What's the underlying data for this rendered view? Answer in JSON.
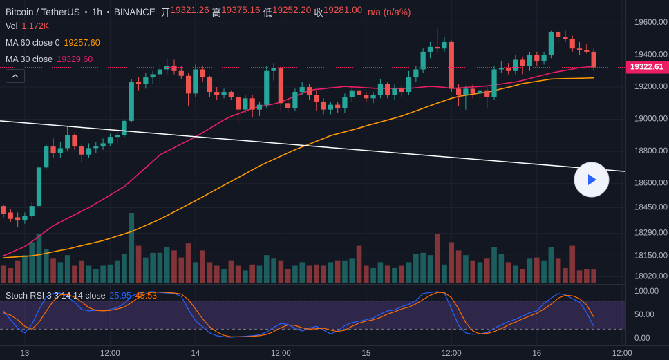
{
  "chart_data": {
    "type": "candlestick",
    "header": {
      "symbol": "Bitcoin / TetherUS",
      "interval": "1h",
      "exchange": "BINANCE",
      "ohlc": [
        {
          "name": "开",
          "value": 19321.26,
          "label": "19321.26"
        },
        {
          "name": "高",
          "value": 19375.16,
          "label": "19375.16"
        },
        {
          "name": "低",
          "value": 19252.2,
          "label": "19252.20"
        },
        {
          "name": "收",
          "value": 19281.0,
          "label": "19281.00"
        }
      ],
      "change": "n/a (n/a%)"
    },
    "up_color": "#26a69a",
    "down_color": "#ef5350",
    "xlim": [
      -0.49,
      87.46
    ],
    "xticks": [
      {
        "value": 3,
        "label": "13"
      },
      {
        "value": 15,
        "label": "12:00"
      },
      {
        "value": 27,
        "label": "14"
      },
      {
        "value": 39,
        "label": "12:00"
      },
      {
        "value": 51,
        "label": "15"
      },
      {
        "value": 63,
        "label": "12:00"
      },
      {
        "value": 75,
        "label": "16"
      },
      {
        "value": 87,
        "label": "12:00"
      }
    ],
    "ylim": [
      17979,
      19742
    ],
    "yticks": [
      {
        "value": 19600,
        "label": "19600.00"
      },
      {
        "value": 19400,
        "label": "19400.00"
      },
      {
        "value": 19200,
        "label": "19200.00"
      },
      {
        "value": 19000,
        "label": "19000.00"
      },
      {
        "value": 18800,
        "label": "18800.00"
      },
      {
        "value": 18600,
        "label": "18600.00"
      },
      {
        "value": 18450,
        "label": "18450.00"
      },
      {
        "value": 18290,
        "label": "18290.00"
      },
      {
        "value": 18150,
        "label": "18150.00"
      },
      {
        "value": 18020,
        "label": "18020.00"
      }
    ],
    "last_price": {
      "value": 19322.61,
      "label": "19322.61",
      "color": "#e91e63"
    },
    "candles": [
      [
        18460,
        18470,
        18390,
        18410
      ],
      [
        18420,
        18440,
        18360,
        18380
      ],
      [
        18390,
        18420,
        18330,
        18370
      ],
      [
        18370,
        18420,
        18350,
        18400
      ],
      [
        18400,
        18480,
        18380,
        18460
      ],
      [
        18460,
        18720,
        18450,
        18700
      ],
      [
        18700,
        18850,
        18690,
        18830
      ],
      [
        18830,
        18880,
        18760,
        18790
      ],
      [
        18790,
        18860,
        18760,
        18820
      ],
      [
        18820,
        18960,
        18800,
        18900
      ],
      [
        18900,
        18910,
        18810,
        18830
      ],
      [
        18830,
        18850,
        18730,
        18780
      ],
      [
        18780,
        18850,
        18760,
        18820
      ],
      [
        18820,
        18860,
        18790,
        18830
      ],
      [
        18830,
        18880,
        18810,
        18850
      ],
      [
        18850,
        18910,
        18830,
        18890
      ],
      [
        18890,
        18930,
        18850,
        18900
      ],
      [
        18900,
        19000,
        18890,
        18990
      ],
      [
        18990,
        19250,
        18980,
        19230
      ],
      [
        19230,
        19260,
        19180,
        19220
      ],
      [
        19220,
        19290,
        19190,
        19260
      ],
      [
        19260,
        19300,
        19220,
        19280
      ],
      [
        19280,
        19340,
        19220,
        19310
      ],
      [
        19310,
        19380,
        19280,
        19330
      ],
      [
        19330,
        19370,
        19280,
        19300
      ],
      [
        19300,
        19330,
        19250,
        19270
      ],
      [
        19270,
        19290,
        19080,
        19160
      ],
      [
        19160,
        19340,
        19140,
        19310
      ],
      [
        19310,
        19330,
        19230,
        19260
      ],
      [
        19260,
        19270,
        19140,
        19170
      ],
      [
        19170,
        19200,
        19120,
        19150
      ],
      [
        19150,
        19190,
        19130,
        19170
      ],
      [
        19170,
        19180,
        19120,
        19140
      ],
      [
        19140,
        19160,
        18970,
        19060
      ],
      [
        19060,
        19150,
        19040,
        19130
      ],
      [
        19130,
        19150,
        19010,
        19060
      ],
      [
        19060,
        19110,
        19020,
        19090
      ],
      [
        19090,
        19330,
        19070,
        19300
      ],
      [
        19300,
        19350,
        19240,
        19320
      ],
      [
        19320,
        19330,
        19050,
        19100
      ],
      [
        19100,
        19130,
        19040,
        19070
      ],
      [
        19070,
        19190,
        19050,
        19170
      ],
      [
        19170,
        19230,
        19150,
        19200
      ],
      [
        19200,
        19220,
        19120,
        19150
      ],
      [
        19150,
        19180,
        19050,
        19110
      ],
      [
        19110,
        19130,
        19030,
        19060
      ],
      [
        19060,
        19110,
        19030,
        19090
      ],
      [
        19090,
        19110,
        19040,
        19070
      ],
      [
        19070,
        19160,
        19040,
        19140
      ],
      [
        19140,
        19200,
        19110,
        19180
      ],
      [
        19180,
        19210,
        19130,
        19150
      ],
      [
        19150,
        19170,
        19110,
        19130
      ],
      [
        19130,
        19170,
        19100,
        19150
      ],
      [
        19150,
        19250,
        19130,
        19220
      ],
      [
        19220,
        19230,
        19130,
        19150
      ],
      [
        19150,
        19220,
        19120,
        19190
      ],
      [
        19190,
        19210,
        19140,
        19170
      ],
      [
        19170,
        19300,
        19150,
        19260
      ],
      [
        19260,
        19330,
        19230,
        19310
      ],
      [
        19310,
        19440,
        19290,
        19420
      ],
      [
        19420,
        19480,
        19380,
        19450
      ],
      [
        19450,
        19570,
        19420,
        19440
      ],
      [
        19440,
        19510,
        19420,
        19480
      ],
      [
        19480,
        19490,
        19170,
        19190
      ],
      [
        19190,
        19220,
        19080,
        19150
      ],
      [
        19150,
        19210,
        19060,
        19190
      ],
      [
        19190,
        19220,
        19130,
        19160
      ],
      [
        19160,
        19210,
        19100,
        19180
      ],
      [
        19180,
        19200,
        19070,
        19140
      ],
      [
        19140,
        19330,
        19120,
        19310
      ],
      [
        19310,
        19360,
        19290,
        19320
      ],
      [
        19320,
        19350,
        19280,
        19300
      ],
      [
        19300,
        19400,
        19280,
        19370
      ],
      [
        19370,
        19390,
        19280,
        19330
      ],
      [
        19330,
        19420,
        19300,
        19400
      ],
      [
        19400,
        19420,
        19330,
        19360
      ],
      [
        19360,
        19420,
        19340,
        19400
      ],
      [
        19400,
        19550,
        19380,
        19540
      ],
      [
        19540,
        19550,
        19480,
        19510
      ],
      [
        19510,
        19550,
        19480,
        19500
      ],
      [
        19500,
        19520,
        19420,
        19440
      ],
      [
        19440,
        19480,
        19400,
        19430
      ],
      [
        19430,
        19470,
        19410,
        19420
      ],
      [
        19420,
        19440,
        19300,
        19322.61
      ]
    ],
    "volume_legend": {
      "name": "Vol",
      "value_label": "1.172K"
    },
    "vlim": [
      0,
      7
    ],
    "volume": [
      1.5,
      1.3,
      1.9,
      2.4,
      3.5,
      4.2,
      2.9,
      2.1,
      1.8,
      2.4,
      1.5,
      1.9,
      1.5,
      1.2,
      1.5,
      1.6,
      1.9,
      2.5,
      6.0,
      3.2,
      2.2,
      2.6,
      2.6,
      3.1,
      2.8,
      2.2,
      3.4,
      1.8,
      2.8,
      1.8,
      1.5,
      1.2,
      1.9,
      1.5,
      1.1,
      1.6,
      1.5,
      2.4,
      2.1,
      1.9,
      1.2,
      1.5,
      1.8,
      1.5,
      1.6,
      1.5,
      1.8,
      1.9,
      1.9,
      2.1,
      3.2,
      1.5,
      1.3,
      1.8,
      1.5,
      1.3,
      1.5,
      1.8,
      2.5,
      2.6,
      2.4,
      4.2,
      1.6,
      3.5,
      2.8,
      2.4,
      1.9,
      1.8,
      2.1,
      3.1,
      2.5,
      1.8,
      1.5,
      1.2,
      2.1,
      2.2,
      1.9,
      3.1,
      2.1,
      1.3,
      3.2,
      1.1,
      1.2,
      1.172
    ],
    "ma": [
      {
        "name": "MA 60 close 0",
        "value_label": "19257.60",
        "color": "#ff9800",
        "values": [
          18138,
          18141,
          18144,
          18147,
          18150,
          18157,
          18166,
          18175,
          18184,
          18192,
          18203,
          18214,
          18224,
          18235,
          18245,
          18259,
          18273,
          18287,
          18301,
          18320,
          18339,
          18358,
          18378,
          18401,
          18424,
          18447,
          18470,
          18493,
          18517,
          18541,
          18565,
          18589,
          18613,
          18637,
          18661,
          18685,
          18709,
          18730,
          18750,
          18770,
          18790,
          18810,
          18828,
          18845,
          18863,
          18880,
          18898,
          18910,
          18921,
          18933,
          18945,
          18959,
          18971,
          18983,
          18995,
          19007,
          19020,
          19036,
          19052,
          19068,
          19084,
          19100,
          19115,
          19130,
          19142,
          19149,
          19156,
          19163,
          19168,
          19178,
          19189,
          19199,
          19210,
          19222,
          19229,
          19236,
          19243,
          19250,
          19252,
          19253,
          19254,
          19255,
          19256,
          19257.6
        ]
      },
      {
        "name": "MA 30 close",
        "value_label": "19329.60",
        "color": "#e91e63",
        "values": [
          18151,
          18170,
          18189,
          18208,
          18239,
          18272,
          18305,
          18338,
          18360,
          18383,
          18405,
          18428,
          18450,
          18476,
          18502,
          18528,
          18555,
          18581,
          18620,
          18660,
          18699,
          18738,
          18778,
          18801,
          18823,
          18846,
          18868,
          18890,
          18917,
          18943,
          18969,
          18996,
          19018,
          19034,
          19051,
          19067,
          19079,
          19087,
          19095,
          19107,
          19125,
          19143,
          19161,
          19179,
          19186,
          19190,
          19195,
          19199,
          19204,
          19201,
          19199,
          19196,
          19193,
          19191,
          19191,
          19191,
          19191,
          19191,
          19196,
          19200,
          19204,
          19202,
          19198,
          19192,
          19194,
          19198,
          19201,
          19204,
          19207,
          19213,
          19219,
          19226,
          19232,
          19242,
          19253,
          19265,
          19276,
          19288,
          19296,
          19304,
          19312,
          19320,
          19325,
          19329.6
        ]
      }
    ],
    "trendline": {
      "color": "#ffffff",
      "points": [
        [
          -0.49,
          18990
        ],
        [
          87.46,
          18675
        ]
      ]
    },
    "stoch": {
      "name": "Stoch RSI 3 3 14 14 close",
      "ylim": [
        -14.7,
        113.2
      ],
      "yticks": [
        {
          "value": 100,
          "label": "100.00"
        },
        {
          "value": 50,
          "label": "50.00"
        },
        {
          "value": 0,
          "label": "0.00"
        }
      ],
      "bands": [
        20,
        80
      ],
      "band_color": "#7e57c2",
      "series": [
        {
          "name": "K",
          "color": "#2962ff",
          "value_label": "25.95",
          "values": [
            59,
            40,
            22,
            12,
            30,
            62,
            88,
            96,
            97,
            88,
            78,
            62,
            59,
            60,
            60,
            62,
            66,
            75,
            90,
            97,
            99,
            100,
            98,
            97,
            96,
            90,
            62,
            38,
            25,
            12,
            6,
            4,
            3,
            4,
            5,
            6,
            8,
            14,
            24,
            32,
            30,
            22,
            16,
            22,
            26,
            18,
            10,
            16,
            28,
            34,
            37,
            40,
            44,
            52,
            59,
            61,
            68,
            73,
            81,
            96,
            98,
            100,
            97,
            63,
            28,
            12,
            9,
            10,
            13,
            22,
            29,
            36,
            41,
            48,
            55,
            59,
            75,
            86,
            96,
            93,
            85,
            78,
            55,
            25.95
          ]
        },
        {
          "name": "D",
          "color": "#ff6d00",
          "value_label": "45.53",
          "values": [
            55,
            50,
            40,
            26,
            20,
            35,
            58,
            80,
            93,
            94,
            88,
            78,
            66,
            60,
            59,
            60,
            63,
            67,
            77,
            87,
            95,
            99,
            99,
            98,
            97,
            95,
            83,
            63,
            42,
            25,
            14,
            7,
            4,
            4,
            4,
            5,
            6,
            9,
            15,
            23,
            29,
            28,
            23,
            20,
            21,
            22,
            18,
            15,
            18,
            26,
            33,
            37,
            40,
            45,
            52,
            57,
            63,
            67,
            74,
            83,
            92,
            98,
            98,
            87,
            63,
            34,
            16,
            10,
            11,
            15,
            21,
            29,
            35,
            42,
            48,
            54,
            63,
            73,
            86,
            92,
            91,
            85,
            72,
            45.53
          ]
        }
      ]
    }
  }
}
